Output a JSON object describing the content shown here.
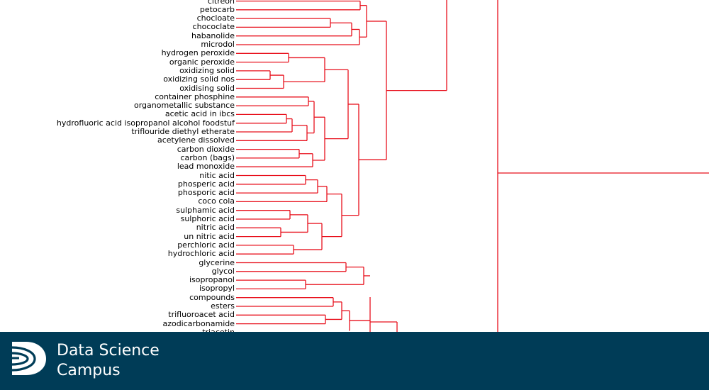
{
  "dendrogram": {
    "line_color": "#e8101c",
    "leaves": [
      "citreon",
      "petocarb",
      "chocloate",
      "chococlate",
      "habanolide",
      "microdol",
      "hydrogen peroxide",
      "organic peroxide",
      "oxidizing solid",
      "oxidizing solid nos",
      "oxidising solid",
      "container phosphine",
      "organometallic substance",
      "acetic acid in ibcs",
      "hydrofluoric acid isopropanol alcohol foodstuf",
      "triflouride diethyl etherate",
      "acetylene dissolved",
      "carbon dioxide",
      "carbon (bags)",
      "lead monoxide",
      "nitic acid",
      "phosperic acid",
      "phosporic acid",
      "coco cola",
      "sulphamic acid",
      "sulphoric acid",
      "nitric acid",
      "un nitric acid",
      "perchloric acid",
      "hydrochloric acid",
      "glycerine",
      "glycol",
      "isopropanol",
      "isopropyl",
      "compounds",
      "esters",
      "trifluoroacet acid",
      "azodicarbonamide",
      "triacetin"
    ]
  },
  "footer": {
    "background": "#003c57",
    "brand_line_1": "Data Science",
    "brand_line_2": "Campus"
  }
}
